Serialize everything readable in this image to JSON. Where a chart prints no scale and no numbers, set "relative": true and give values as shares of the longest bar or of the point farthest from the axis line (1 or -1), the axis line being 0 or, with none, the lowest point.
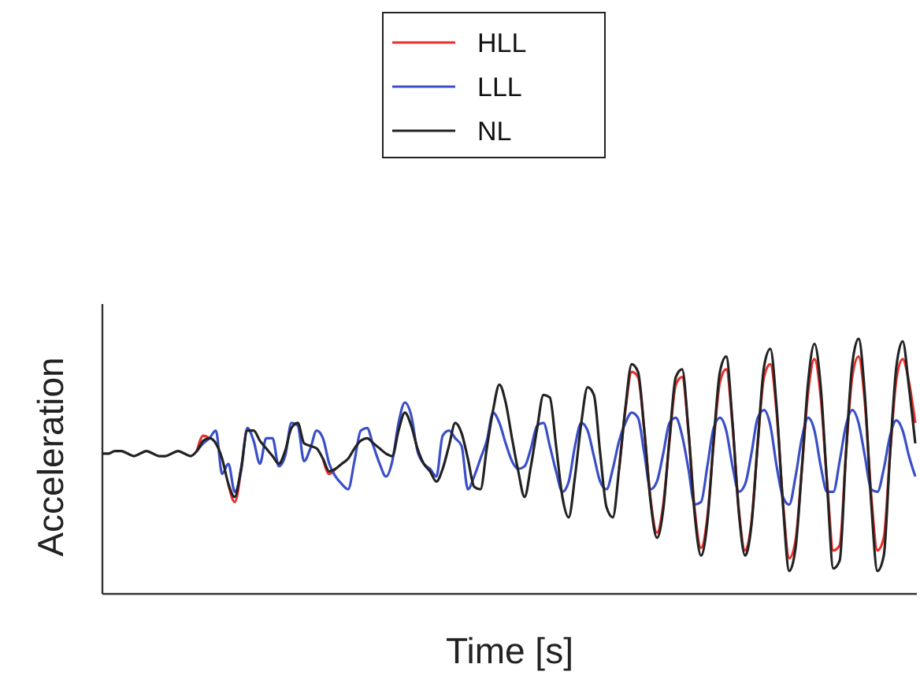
{
  "chart_data": {
    "type": "line",
    "relative": true,
    "xlabel": "Time [s]",
    "ylabel": "Acceleration",
    "legend": "top",
    "marker": "none",
    "line_style": "solid",
    "categories": [
      null,
      null,
      null,
      null,
      null,
      null,
      null,
      null,
      null,
      null,
      null,
      null,
      null,
      null,
      null,
      null,
      null,
      null,
      null,
      null,
      null,
      null,
      null,
      null,
      null,
      null,
      null,
      null,
      null,
      null,
      null,
      null,
      null,
      null,
      null,
      null,
      null,
      null,
      null,
      null,
      null,
      null,
      null,
      null,
      null,
      null,
      null,
      null,
      null,
      null,
      null,
      null,
      null,
      null,
      null,
      null,
      null,
      null,
      null,
      null,
      null,
      null,
      null,
      null,
      null,
      null,
      null,
      null,
      null,
      null,
      null,
      null,
      null,
      null,
      null,
      null,
      null,
      null,
      null,
      null,
      null,
      null,
      null,
      null,
      null,
      null,
      null,
      null,
      null,
      null,
      null,
      null,
      null,
      null,
      null,
      null,
      null,
      null,
      null,
      null,
      null,
      null,
      null,
      null,
      null,
      null,
      null,
      null,
      null,
      null,
      null,
      null,
      null,
      null,
      null,
      null,
      null,
      null,
      null,
      null,
      null,
      null,
      null,
      null,
      null,
      null,
      null,
      null,
      null,
      null
    ],
    "series": [
      {
        "name": "HLL",
        "color": "#e8302c",
        "values": [
          null,
          null,
          null,
          null,
          null,
          null,
          null,
          null,
          null,
          null,
          null,
          null,
          null,
          null,
          null,
          0.56,
          0.62,
          0.61,
          null,
          null,
          0.43,
          0.36,
          0.49,
          null,
          null,
          null,
          null,
          null,
          null,
          null,
          null,
          null,
          null,
          null,
          null,
          0.53,
          0.47,
          0.49,
          null,
          null,
          null,
          null,
          null,
          null,
          null,
          null,
          null,
          null,
          null,
          null,
          null,
          null,
          null,
          null,
          null,
          null,
          null,
          null,
          null,
          null,
          null,
          null,
          null,
          null,
          null,
          null,
          null,
          null,
          null,
          null,
          null,
          null,
          null,
          null,
          null,
          null,
          null,
          null,
          null,
          null,
          null,
          null,
          0.49,
          0.72,
          0.87,
          0.85,
          0.64,
          0.37,
          0.24,
          0.35,
          0.6,
          0.82,
          0.85,
          0.64,
          0.33,
          0.18,
          0.3,
          0.59,
          0.83,
          0.88,
          0.66,
          0.33,
          0.17,
          0.28,
          0.59,
          0.85,
          0.9,
          0.71,
          0.36,
          0.14,
          0.21,
          0.49,
          0.79,
          0.92,
          0.77,
          0.44,
          0.17,
          0.19,
          0.55,
          0.85,
          0.93,
          0.75,
          0.39,
          0.17,
          0.22,
          0.55,
          0.84,
          0.92,
          0.83,
          0.67
        ]
      },
      {
        "name": "LLL",
        "color": "#3a4fc8",
        "values": [
          null,
          null,
          null,
          null,
          null,
          null,
          null,
          null,
          null,
          null,
          null,
          null,
          null,
          null,
          null,
          0.56,
          0.59,
          0.61,
          0.64,
          0.47,
          0.51,
          0.4,
          0.48,
          0.65,
          0.6,
          0.51,
          0.61,
          0.61,
          0.5,
          0.54,
          0.67,
          0.66,
          0.52,
          0.57,
          0.64,
          0.61,
          0.51,
          0.46,
          0.43,
          0.41,
          0.52,
          0.64,
          0.65,
          0.58,
          0.51,
          0.46,
          0.52,
          0.67,
          0.75,
          0.7,
          0.56,
          0.51,
          0.49,
          0.46,
          0.62,
          0.64,
          0.61,
          0.58,
          0.41,
          0.46,
          0.53,
          0.6,
          0.71,
          0.67,
          0.59,
          0.52,
          0.49,
          0.5,
          0.57,
          0.66,
          0.67,
          0.58,
          0.48,
          0.4,
          0.44,
          0.58,
          0.67,
          0.64,
          0.54,
          0.44,
          0.41,
          0.49,
          0.6,
          0.67,
          0.71,
          0.69,
          0.55,
          0.41,
          0.44,
          0.55,
          0.67,
          0.69,
          0.62,
          0.49,
          0.35,
          0.36,
          0.5,
          0.65,
          0.69,
          0.64,
          0.5,
          0.4,
          0.43,
          0.55,
          0.69,
          0.72,
          0.66,
          0.5,
          0.38,
          0.35,
          0.46,
          0.61,
          0.69,
          0.64,
          0.5,
          0.4,
          0.4,
          0.52,
          0.66,
          0.72,
          0.67,
          0.54,
          0.41,
          0.4,
          0.49,
          0.62,
          0.68,
          0.64,
          0.54,
          0.46
        ]
      },
      {
        "name": "NL",
        "color": "#222222",
        "values": [
          0.55,
          0.55,
          0.56,
          0.56,
          0.55,
          0.54,
          0.55,
          0.56,
          0.55,
          0.54,
          0.54,
          0.55,
          0.56,
          0.55,
          0.54,
          0.56,
          0.6,
          0.61,
          0.59,
          0.53,
          0.43,
          0.38,
          0.49,
          0.64,
          0.64,
          0.6,
          0.57,
          0.54,
          0.51,
          0.56,
          0.65,
          0.67,
          0.59,
          0.58,
          0.57,
          0.53,
          0.48,
          0.49,
          0.51,
          0.53,
          0.57,
          0.6,
          0.61,
          0.59,
          0.57,
          0.55,
          0.54,
          0.64,
          0.71,
          0.66,
          0.57,
          0.51,
          0.48,
          0.44,
          0.49,
          0.58,
          0.67,
          0.63,
          0.53,
          0.42,
          0.41,
          0.57,
          0.72,
          0.82,
          0.75,
          0.61,
          0.48,
          0.38,
          0.5,
          0.65,
          0.78,
          0.77,
          0.58,
          0.38,
          0.3,
          0.46,
          0.67,
          0.81,
          0.78,
          0.55,
          0.34,
          0.3,
          0.49,
          0.73,
          0.9,
          0.87,
          0.64,
          0.36,
          0.22,
          0.33,
          0.61,
          0.85,
          0.88,
          0.64,
          0.31,
          0.15,
          0.28,
          0.6,
          0.87,
          0.93,
          0.67,
          0.32,
          0.15,
          0.27,
          0.59,
          0.89,
          0.96,
          0.73,
          0.35,
          0.09,
          0.18,
          0.49,
          0.83,
          0.98,
          0.81,
          0.43,
          0.1,
          0.13,
          0.55,
          0.9,
          1.0,
          0.78,
          0.36,
          0.09,
          0.15,
          0.55,
          0.89,
          0.99,
          0.81,
          0.59
        ]
      }
    ]
  }
}
